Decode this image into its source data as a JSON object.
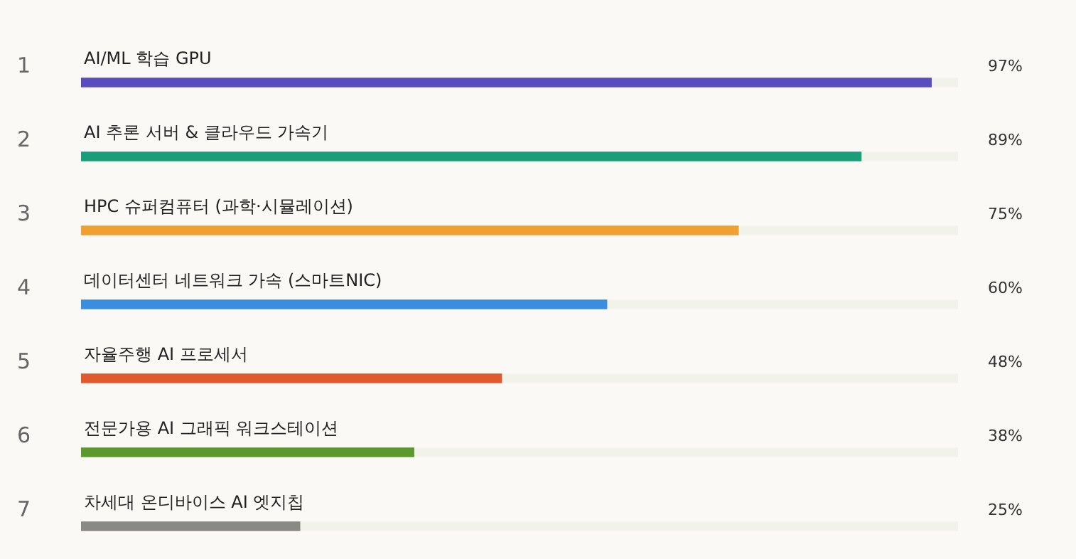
{
  "chart_data": {
    "type": "bar",
    "orientation": "horizontal",
    "categories": [
      "AI/ML 학습 GPU",
      "AI 추론 서버 & 클라우드 가속기",
      "HPC 슈퍼컴퓨터 (과학·시뮬레이션)",
      "데이터센터 네트워크 가속 (스마트NIC)",
      "자율주행 AI 프로세서",
      "전문가용 AI 그래픽 워크스테이션",
      "차세대 온디바이스 AI 엣지칩"
    ],
    "values": [
      97,
      89,
      75,
      60,
      48,
      38,
      25
    ],
    "colors": [
      "#5a4cbf",
      "#1a9e7a",
      "#f0a030",
      "#3b8de0",
      "#e05a2f",
      "#5a9a2a",
      "#8a8a84"
    ],
    "value_labels": [
      "97%",
      "89%",
      "75%",
      "60%",
      "48%",
      "38%",
      "25%"
    ],
    "annotations": [
      "1",
      "2",
      "3",
      "4",
      "5",
      "6",
      "7"
    ],
    "xlim": [
      0,
      100
    ],
    "tick_labels": false,
    "grid": false,
    "legend": false
  }
}
